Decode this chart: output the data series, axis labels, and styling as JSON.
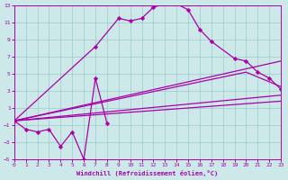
{
  "xlabel": "Windchill (Refroidissement éolien,°C)",
  "xlim": [
    0,
    23
  ],
  "ylim": [
    -5,
    13
  ],
  "xticks": [
    0,
    1,
    2,
    3,
    4,
    5,
    6,
    7,
    8,
    9,
    10,
    11,
    12,
    13,
    14,
    15,
    16,
    17,
    18,
    19,
    20,
    21,
    22,
    23
  ],
  "yticks": [
    -5,
    -3,
    -1,
    1,
    3,
    5,
    7,
    9,
    11,
    13
  ],
  "background_color": "#cce8e8",
  "grid_color": "#99cccc",
  "curve_color": "#aa00aa",
  "curve1_x": [
    0,
    1,
    2,
    3,
    4,
    5,
    6,
    7,
    8
  ],
  "curve1_y": [
    -0.5,
    -1.5,
    -1.8,
    -1.5,
    -3.5,
    -1.8,
    -5.0,
    4.5,
    -0.8
  ],
  "curve2_x": [
    0,
    7,
    9,
    10,
    11,
    12,
    13,
    14,
    15,
    16,
    17,
    19,
    20,
    21,
    22,
    23
  ],
  "curve2_y": [
    -0.5,
    8.2,
    11.5,
    11.2,
    11.5,
    12.8,
    13.2,
    13.2,
    12.5,
    10.2,
    8.8,
    6.8,
    6.5,
    5.2,
    4.5,
    3.2
  ],
  "line1_x": [
    0,
    23
  ],
  "line1_y": [
    -0.5,
    6.5
  ],
  "line2_x": [
    0,
    20,
    23
  ],
  "line2_y": [
    -0.5,
    5.2,
    3.5
  ],
  "line3_x": [
    0,
    23
  ],
  "line3_y": [
    -0.5,
    2.5
  ],
  "line4_x": [
    0,
    23
  ],
  "line4_y": [
    -0.5,
    1.8
  ]
}
